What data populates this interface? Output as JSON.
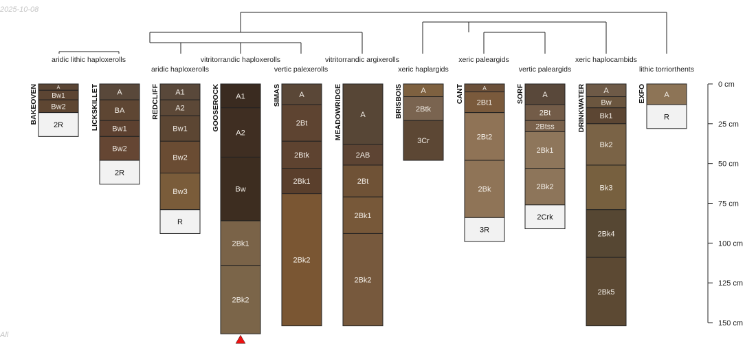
{
  "watermark_date": "2025-10-08",
  "footer_text": "All",
  "colors": {
    "line": "#222222",
    "marker": "#ee1111",
    "background": "#ffffff"
  },
  "profiles": [
    {
      "id": "BAKEOVEN",
      "horizons": [
        {
          "name": "A",
          "top": 0,
          "bottom": 4,
          "color": "#5a4534"
        },
        {
          "name": "Bw1",
          "top": 4,
          "bottom": 10,
          "color": "#5c4533"
        },
        {
          "name": "Bw2",
          "top": 10,
          "bottom": 18,
          "color": "#5e4632"
        },
        {
          "name": "2R",
          "top": 18,
          "bottom": 33,
          "color": "#f2f2f2"
        }
      ]
    },
    {
      "id": "LICKSKILLET",
      "horizons": [
        {
          "name": "A",
          "top": 0,
          "bottom": 10,
          "color": "#59483a"
        },
        {
          "name": "BA",
          "top": 10,
          "bottom": 23,
          "color": "#5e4633"
        },
        {
          "name": "Bw1",
          "top": 23,
          "bottom": 33,
          "color": "#5d4130"
        },
        {
          "name": "Bw2",
          "top": 33,
          "bottom": 48,
          "color": "#654633"
        },
        {
          "name": "2R",
          "top": 48,
          "bottom": 63,
          "color": "#f2f2f2"
        }
      ]
    },
    {
      "id": "REDCLIFF",
      "horizons": [
        {
          "name": "A1",
          "top": 0,
          "bottom": 10,
          "color": "#59483a"
        },
        {
          "name": "A2",
          "top": 10,
          "bottom": 20,
          "color": "#5c4837"
        },
        {
          "name": "Bw1",
          "top": 20,
          "bottom": 36,
          "color": "#5c4633"
        },
        {
          "name": "Bw2",
          "top": 36,
          "bottom": 56,
          "color": "#6a4c33"
        },
        {
          "name": "Bw3",
          "top": 56,
          "bottom": 79,
          "color": "#7a5c3a"
        },
        {
          "name": "R",
          "top": 79,
          "bottom": 94,
          "color": "#f2f2f2"
        }
      ]
    },
    {
      "id": "GOOSEROCK",
      "marker": true,
      "horizons": [
        {
          "name": "A1",
          "top": 0,
          "bottom": 15,
          "color": "#3a2b20"
        },
        {
          "name": "A2",
          "top": 15,
          "bottom": 46,
          "color": "#3f2e22"
        },
        {
          "name": "Bw",
          "top": 46,
          "bottom": 86,
          "color": "#3d2d20"
        },
        {
          "name": "2Bk1",
          "top": 86,
          "bottom": 114,
          "color": "#7a6348"
        },
        {
          "name": "2Bk2",
          "top": 114,
          "bottom": 157,
          "color": "#7b6549"
        }
      ]
    },
    {
      "id": "SIMAS",
      "horizons": [
        {
          "name": "A",
          "top": 0,
          "bottom": 13,
          "color": "#5a4737"
        },
        {
          "name": "2Bt",
          "top": 13,
          "bottom": 36,
          "color": "#5e4431"
        },
        {
          "name": "2Btk",
          "top": 36,
          "bottom": 53,
          "color": "#5e4330"
        },
        {
          "name": "2Bk1",
          "top": 53,
          "bottom": 69,
          "color": "#5a3f2c"
        },
        {
          "name": "2Bk2",
          "top": 69,
          "bottom": 152,
          "color": "#7a5633"
        }
      ]
    },
    {
      "id": "MEADOWRIDGE",
      "horizons": [
        {
          "name": "A",
          "top": 0,
          "bottom": 38,
          "color": "#574636"
        },
        {
          "name": "2AB",
          "top": 38,
          "bottom": 51,
          "color": "#5d4433"
        },
        {
          "name": "2Bt",
          "top": 51,
          "bottom": 71,
          "color": "#6f5236"
        },
        {
          "name": "2Bk1",
          "top": 71,
          "bottom": 94,
          "color": "#775839"
        },
        {
          "name": "2Bk2",
          "top": 94,
          "bottom": 152,
          "color": "#77593d"
        }
      ]
    },
    {
      "id": "BRISBOIS",
      "horizons": [
        {
          "name": "A",
          "top": 0,
          "bottom": 8,
          "color": "#7e6140"
        },
        {
          "name": "2Btk",
          "top": 8,
          "bottom": 23,
          "color": "#7a6450"
        },
        {
          "name": "3Cr",
          "top": 23,
          "bottom": 48,
          "color": "#5c4734"
        }
      ]
    },
    {
      "id": "CANT",
      "horizons": [
        {
          "name": "A",
          "top": 0,
          "bottom": 5,
          "color": "#6b5039"
        },
        {
          "name": "2Bt1",
          "top": 5,
          "bottom": 18,
          "color": "#7a5a3c"
        },
        {
          "name": "2Bt2",
          "top": 18,
          "bottom": 48,
          "color": "#8f7356"
        },
        {
          "name": "2Bk",
          "top": 48,
          "bottom": 84,
          "color": "#8f7457"
        },
        {
          "name": "3R",
          "top": 84,
          "bottom": 99,
          "color": "#f2f2f2"
        }
      ]
    },
    {
      "id": "SORF",
      "horizons": [
        {
          "name": "A",
          "top": 0,
          "bottom": 13,
          "color": "#59483a"
        },
        {
          "name": "2Bt",
          "top": 13,
          "bottom": 23,
          "color": "#735c48"
        },
        {
          "name": "2Btss",
          "top": 23,
          "bottom": 30,
          "color": "#7a624c"
        },
        {
          "name": "2Bk1",
          "top": 30,
          "bottom": 53,
          "color": "#8e765b"
        },
        {
          "name": "2Bk2",
          "top": 53,
          "bottom": 76,
          "color": "#8d755a"
        },
        {
          "name": "2Crk",
          "top": 76,
          "bottom": 91,
          "color": "#f2f2f2"
        }
      ]
    },
    {
      "id": "DRINKWATER",
      "horizons": [
        {
          "name": "A",
          "top": 0,
          "bottom": 8,
          "color": "#6e5a47"
        },
        {
          "name": "Bw",
          "top": 8,
          "bottom": 15,
          "color": "#6b563f"
        },
        {
          "name": "Bk1",
          "top": 15,
          "bottom": 25,
          "color": "#5c4633"
        },
        {
          "name": "Bk2",
          "top": 25,
          "bottom": 51,
          "color": "#7a6346"
        },
        {
          "name": "Bk3",
          "top": 51,
          "bottom": 79,
          "color": "#77603f"
        },
        {
          "name": "2Bk4",
          "top": 79,
          "bottom": 109,
          "color": "#564733"
        },
        {
          "name": "2Bk5",
          "top": 109,
          "bottom": 152,
          "color": "#5c4933"
        }
      ]
    },
    {
      "id": "EXFO",
      "horizons": [
        {
          "name": "A",
          "top": 0,
          "bottom": 13,
          "color": "#8d7456"
        },
        {
          "name": "R",
          "top": 13,
          "bottom": 28,
          "color": "#f2f2f2"
        }
      ]
    }
  ],
  "taxa": [
    "aridic lithic haploxerolls",
    "aridic haploxerolls",
    "vitritorrandic haploxerolls",
    "vertic palexerolls",
    "vitritorrandic argixerolls",
    "xeric haplargids",
    "xeric paleargids",
    "vertic paleargids",
    "xeric haplocambids",
    "lithic torriorthents"
  ],
  "depth_axis": {
    "unit": "cm",
    "ticks": [
      0,
      25,
      50,
      75,
      100,
      125,
      150
    ],
    "max": 150
  }
}
